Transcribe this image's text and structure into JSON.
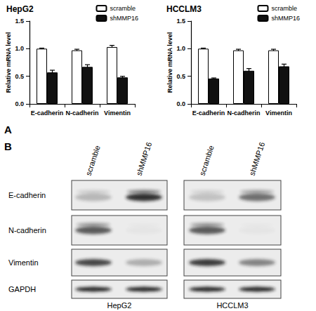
{
  "chart_data": [
    {
      "type": "bar",
      "title": "HepG2",
      "categories": [
        "E-cadherin",
        "N-cadherin",
        "Vimentin"
      ],
      "series": [
        {
          "name": "scramble",
          "color": "#ffffff",
          "values": [
            1.0,
            0.97,
            1.03
          ],
          "errors": [
            0.01,
            0.02,
            0.03
          ]
        },
        {
          "name": "shMMP16",
          "color": "#111111",
          "values": [
            0.57,
            0.67,
            0.48
          ],
          "errors": [
            0.04,
            0.04,
            0.02
          ]
        }
      ],
      "ylabel": "Relative mRNA level",
      "ylim": [
        0,
        1.5
      ],
      "yticks": [
        {
          "value": 0,
          "label": "0.0"
        },
        {
          "value": 0.5,
          "label": "0.5"
        },
        {
          "value": 1,
          "label": "1.0"
        },
        {
          "value": 1.5,
          "label": "1.5"
        }
      ],
      "grid": false,
      "legend": "upper right"
    },
    {
      "type": "bar",
      "title": "HCCLM3",
      "categories": [
        "E-cadherin",
        "N-cadherin",
        "Vimentin"
      ],
      "series": [
        {
          "name": "scramble",
          "color": "#ffffff",
          "values": [
            1.0,
            0.97,
            0.97
          ],
          "errors": [
            0.01,
            0.02,
            0.02
          ]
        },
        {
          "name": "shMMP16",
          "color": "#111111",
          "values": [
            0.46,
            0.6,
            0.68
          ],
          "errors": [
            0.01,
            0.04,
            0.04
          ]
        }
      ],
      "ylabel": "Relative mRNA level",
      "ylim": [
        0,
        1.5
      ],
      "yticks": [
        {
          "value": 0,
          "label": "0.0"
        },
        {
          "value": 0.5,
          "label": "0.5"
        },
        {
          "value": 1,
          "label": "1.0"
        },
        {
          "value": 1.5,
          "label": "1.5"
        }
      ],
      "grid": false,
      "legend": "upper right"
    }
  ],
  "panel_labels": [
    "A",
    "B"
  ],
  "blot": {
    "lanes": [
      "scramble",
      "shMMP16",
      "scramble",
      "shMMP16"
    ],
    "rows": [
      "E-cadherin",
      "N-cadherin",
      "Vimentin",
      "GAPDH"
    ],
    "cell_lines": [
      "HepG2",
      "HCCLM3"
    ]
  }
}
